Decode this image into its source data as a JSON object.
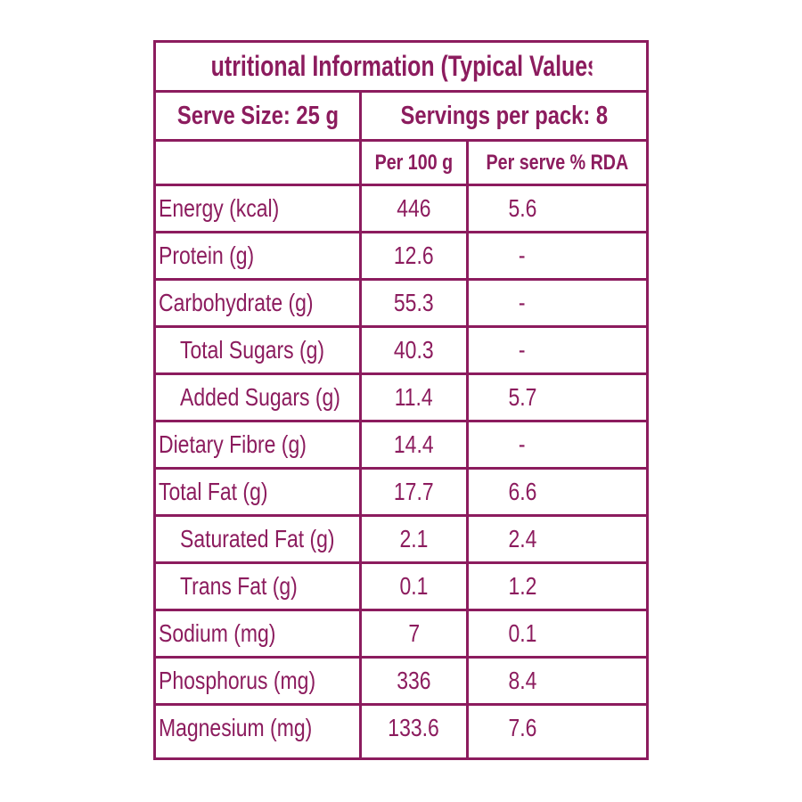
{
  "title": "Nutritional Information (Typical Values)",
  "serve_size": "Serve Size: 25 g",
  "servings_per_pack": "Servings per pack: 8",
  "columns": {
    "per_100g": "Per 100 g",
    "per_serve_rda": "Per serve % RDA"
  },
  "rows": [
    {
      "nutrient": "Energy (kcal)",
      "per_100g": "446",
      "rda": "5.6",
      "indent": false
    },
    {
      "nutrient": "Protein (g)",
      "per_100g": "12.6",
      "rda": "-",
      "indent": false
    },
    {
      "nutrient": "Carbohydrate (g)",
      "per_100g": "55.3",
      "rda": "-",
      "indent": false
    },
    {
      "nutrient": "Total Sugars (g)",
      "per_100g": "40.3",
      "rda": "-",
      "indent": true
    },
    {
      "nutrient": "Added Sugars (g)",
      "per_100g": "11.4",
      "rda": "5.7",
      "indent": true
    },
    {
      "nutrient": "Dietary Fibre (g)",
      "per_100g": "14.4",
      "rda": "-",
      "indent": false
    },
    {
      "nutrient": "Total Fat (g)",
      "per_100g": "17.7",
      "rda": "6.6",
      "indent": false
    },
    {
      "nutrient": "Saturated Fat (g)",
      "per_100g": "2.1",
      "rda": "2.4",
      "indent": true
    },
    {
      "nutrient": "Trans Fat (g)",
      "per_100g": "0.1",
      "rda": "1.2",
      "indent": true
    },
    {
      "nutrient": "Sodium (mg)",
      "per_100g": "7",
      "rda": "0.1",
      "indent": false
    },
    {
      "nutrient": "Phosphorus (mg)",
      "per_100g": "336",
      "rda": "8.4",
      "indent": false
    },
    {
      "nutrient": "Magnesium (mg)",
      "per_100g": "133.6",
      "rda": "7.6",
      "indent": false
    }
  ],
  "colors": {
    "accent": "#8c1c5e",
    "background": "#ffffff"
  }
}
